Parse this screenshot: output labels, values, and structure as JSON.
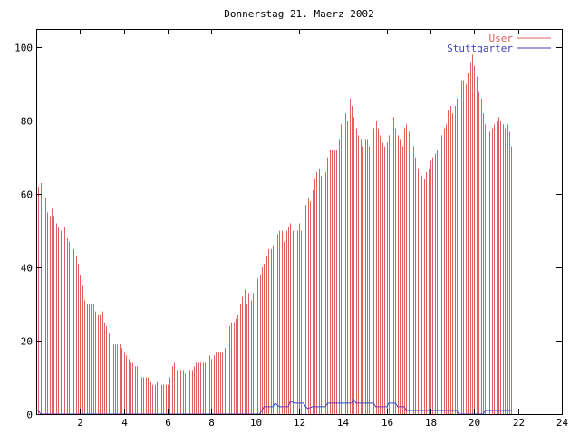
{
  "chart_data": {
    "type": "bar",
    "title": "Donnerstag 21. Maerz 2002",
    "xlabel": "",
    "ylabel": "",
    "xlim": [
      0,
      24
    ],
    "ylim": [
      0,
      105
    ],
    "x_ticks": [
      2,
      4,
      6,
      8,
      10,
      12,
      14,
      16,
      18,
      20,
      22,
      24
    ],
    "y_ticks": [
      0,
      20,
      40,
      60,
      80,
      100
    ],
    "grid": false,
    "legend_position": "top-right",
    "series": [
      {
        "name": "User",
        "style": "impulses",
        "color": "#e06060",
        "points": [
          [
            0,
            66
          ],
          [
            0.1,
            62
          ],
          [
            0.2,
            63
          ],
          [
            0.3,
            62
          ],
          [
            0.4,
            59
          ],
          [
            0.5,
            55
          ],
          [
            0.6,
            54
          ],
          [
            0.7,
            56
          ],
          [
            0.8,
            54
          ],
          [
            0.9,
            52
          ],
          [
            1,
            51
          ],
          [
            1.1,
            50
          ],
          [
            1.2,
            49
          ],
          [
            1.3,
            51
          ],
          [
            1.4,
            48
          ],
          [
            1.5,
            47
          ],
          [
            1.6,
            47
          ],
          [
            1.7,
            45
          ],
          [
            1.8,
            43
          ],
          [
            1.9,
            41
          ],
          [
            2,
            38
          ],
          [
            2.1,
            35
          ],
          [
            2.2,
            31
          ],
          [
            2.3,
            30
          ],
          [
            2.4,
            30
          ],
          [
            2.5,
            30
          ],
          [
            2.6,
            30
          ],
          [
            2.7,
            28
          ],
          [
            2.8,
            27
          ],
          [
            2.9,
            27
          ],
          [
            3,
            28
          ],
          [
            3.1,
            25
          ],
          [
            3.2,
            24
          ],
          [
            3.3,
            22
          ],
          [
            3.4,
            20
          ],
          [
            3.5,
            19
          ],
          [
            3.6,
            19
          ],
          [
            3.7,
            19
          ],
          [
            3.8,
            19
          ],
          [
            3.9,
            18
          ],
          [
            4,
            17
          ],
          [
            4.1,
            16
          ],
          [
            4.2,
            15
          ],
          [
            4.3,
            14
          ],
          [
            4.4,
            14
          ],
          [
            4.5,
            13
          ],
          [
            4.6,
            13
          ],
          [
            4.7,
            11
          ],
          [
            4.8,
            10
          ],
          [
            4.9,
            10
          ],
          [
            5,
            10
          ],
          [
            5.1,
            10
          ],
          [
            5.2,
            9
          ],
          [
            5.3,
            8
          ],
          [
            5.4,
            8
          ],
          [
            5.5,
            9
          ],
          [
            5.6,
            8
          ],
          [
            5.7,
            8
          ],
          [
            5.8,
            8
          ],
          [
            5.9,
            8
          ],
          [
            6,
            8
          ],
          [
            6.1,
            10
          ],
          [
            6.2,
            13
          ],
          [
            6.3,
            14
          ],
          [
            6.4,
            12
          ],
          [
            6.5,
            11
          ],
          [
            6.6,
            12
          ],
          [
            6.7,
            12
          ],
          [
            6.8,
            11
          ],
          [
            6.9,
            12
          ],
          [
            7,
            12
          ],
          [
            7.1,
            12
          ],
          [
            7.2,
            13
          ],
          [
            7.3,
            14
          ],
          [
            7.4,
            14
          ],
          [
            7.5,
            14
          ],
          [
            7.6,
            14
          ],
          [
            7.7,
            14
          ],
          [
            7.8,
            16
          ],
          [
            7.9,
            16
          ],
          [
            8,
            15
          ],
          [
            8.1,
            16
          ],
          [
            8.2,
            17
          ],
          [
            8.3,
            17
          ],
          [
            8.4,
            17
          ],
          [
            8.5,
            17
          ],
          [
            8.6,
            18
          ],
          [
            8.7,
            21
          ],
          [
            8.8,
            24
          ],
          [
            8.9,
            25
          ],
          [
            9,
            25
          ],
          [
            9.1,
            26
          ],
          [
            9.2,
            27
          ],
          [
            9.3,
            30
          ],
          [
            9.4,
            32
          ],
          [
            9.5,
            34
          ],
          [
            9.6,
            30
          ],
          [
            9.7,
            33
          ],
          [
            9.8,
            31
          ],
          [
            9.9,
            33
          ],
          [
            10,
            35
          ],
          [
            10.1,
            37
          ],
          [
            10.2,
            38
          ],
          [
            10.3,
            40
          ],
          [
            10.4,
            41
          ],
          [
            10.5,
            43
          ],
          [
            10.6,
            45
          ],
          [
            10.7,
            45
          ],
          [
            10.8,
            46
          ],
          [
            10.9,
            47
          ],
          [
            11,
            49
          ],
          [
            11.1,
            50
          ],
          [
            11.2,
            50
          ],
          [
            11.3,
            47
          ],
          [
            11.4,
            50
          ],
          [
            11.5,
            51
          ],
          [
            11.6,
            52
          ],
          [
            11.7,
            50
          ],
          [
            11.8,
            48
          ],
          [
            11.9,
            50
          ],
          [
            12,
            52
          ],
          [
            12.1,
            50
          ],
          [
            12.2,
            55
          ],
          [
            12.3,
            57
          ],
          [
            12.4,
            59
          ],
          [
            12.5,
            58
          ],
          [
            12.6,
            61
          ],
          [
            12.7,
            64
          ],
          [
            12.8,
            66
          ],
          [
            12.9,
            67
          ],
          [
            13,
            65
          ],
          [
            13.1,
            67
          ],
          [
            13.2,
            66
          ],
          [
            13.3,
            70
          ],
          [
            13.4,
            72
          ],
          [
            13.5,
            72
          ],
          [
            13.6,
            72
          ],
          [
            13.7,
            72
          ],
          [
            13.8,
            75
          ],
          [
            13.9,
            79
          ],
          [
            14,
            81
          ],
          [
            14.1,
            82
          ],
          [
            14.2,
            80
          ],
          [
            14.3,
            86
          ],
          [
            14.4,
            84
          ],
          [
            14.5,
            81
          ],
          [
            14.6,
            78
          ],
          [
            14.7,
            76
          ],
          [
            14.8,
            75
          ],
          [
            14.9,
            73
          ],
          [
            15,
            75
          ],
          [
            15.1,
            75
          ],
          [
            15.2,
            73
          ],
          [
            15.3,
            76
          ],
          [
            15.4,
            78
          ],
          [
            15.5,
            80
          ],
          [
            15.6,
            78
          ],
          [
            15.7,
            76
          ],
          [
            15.8,
            74
          ],
          [
            15.9,
            73
          ],
          [
            16,
            74
          ],
          [
            16.1,
            76
          ],
          [
            16.2,
            78
          ],
          [
            16.3,
            81
          ],
          [
            16.4,
            78
          ],
          [
            16.5,
            76
          ],
          [
            16.6,
            75
          ],
          [
            16.7,
            73
          ],
          [
            16.8,
            78
          ],
          [
            16.9,
            79
          ],
          [
            17,
            77
          ],
          [
            17.1,
            75
          ],
          [
            17.2,
            73
          ],
          [
            17.3,
            70
          ],
          [
            17.4,
            67
          ],
          [
            17.5,
            66
          ],
          [
            17.6,
            65
          ],
          [
            17.7,
            64
          ],
          [
            17.8,
            66
          ],
          [
            17.9,
            67
          ],
          [
            18,
            69
          ],
          [
            18.1,
            70
          ],
          [
            18.2,
            71
          ],
          [
            18.3,
            72
          ],
          [
            18.4,
            74
          ],
          [
            18.5,
            76
          ],
          [
            18.6,
            78
          ],
          [
            18.7,
            79
          ],
          [
            18.8,
            83
          ],
          [
            18.9,
            84
          ],
          [
            19,
            82
          ],
          [
            19.1,
            84
          ],
          [
            19.2,
            86
          ],
          [
            19.3,
            90
          ],
          [
            19.4,
            91
          ],
          [
            19.5,
            91
          ],
          [
            19.6,
            90
          ],
          [
            19.7,
            93
          ],
          [
            19.8,
            96
          ],
          [
            19.9,
            98
          ],
          [
            20,
            95
          ],
          [
            20.1,
            92
          ],
          [
            20.2,
            88
          ],
          [
            20.3,
            86
          ],
          [
            20.4,
            82
          ],
          [
            20.5,
            79
          ],
          [
            20.6,
            78
          ],
          [
            20.7,
            77
          ],
          [
            20.8,
            78
          ],
          [
            20.9,
            79
          ],
          [
            21,
            80
          ],
          [
            21.1,
            81
          ],
          [
            21.2,
            80
          ],
          [
            21.3,
            79
          ],
          [
            21.4,
            78
          ],
          [
            21.5,
            79
          ],
          [
            21.6,
            77
          ],
          [
            21.7,
            73
          ]
        ]
      },
      {
        "name": "Stuttgarter",
        "style": "lines",
        "color": "#4040c0",
        "points": [
          [
            0,
            1
          ],
          [
            0.1,
            1
          ],
          [
            0.2,
            0
          ],
          [
            9.5,
            0
          ],
          [
            10.2,
            0
          ],
          [
            10.3,
            1
          ],
          [
            10.4,
            2
          ],
          [
            10.8,
            2
          ],
          [
            10.9,
            3
          ],
          [
            11.1,
            2
          ],
          [
            11.5,
            2
          ],
          [
            11.6,
            3.5
          ],
          [
            11.8,
            3
          ],
          [
            12.2,
            3
          ],
          [
            12.3,
            2
          ],
          [
            12.4,
            1.5
          ],
          [
            12.6,
            2
          ],
          [
            13.2,
            2
          ],
          [
            13.3,
            3
          ],
          [
            14.4,
            3
          ],
          [
            14.5,
            4
          ],
          [
            14.6,
            3
          ],
          [
            15.4,
            3
          ],
          [
            15.5,
            2
          ],
          [
            16.0,
            2
          ],
          [
            16.1,
            3
          ],
          [
            16.4,
            3
          ],
          [
            16.5,
            2
          ],
          [
            16.8,
            2
          ],
          [
            16.9,
            1
          ],
          [
            19.2,
            1
          ],
          [
            19.3,
            0
          ],
          [
            20.4,
            0
          ],
          [
            20.5,
            1
          ],
          [
            21.7,
            1
          ]
        ]
      }
    ]
  },
  "colors": {
    "background": "#ffffff",
    "axis": "#000000",
    "user": "#e06060",
    "stuttgarter": "#4040c0"
  }
}
